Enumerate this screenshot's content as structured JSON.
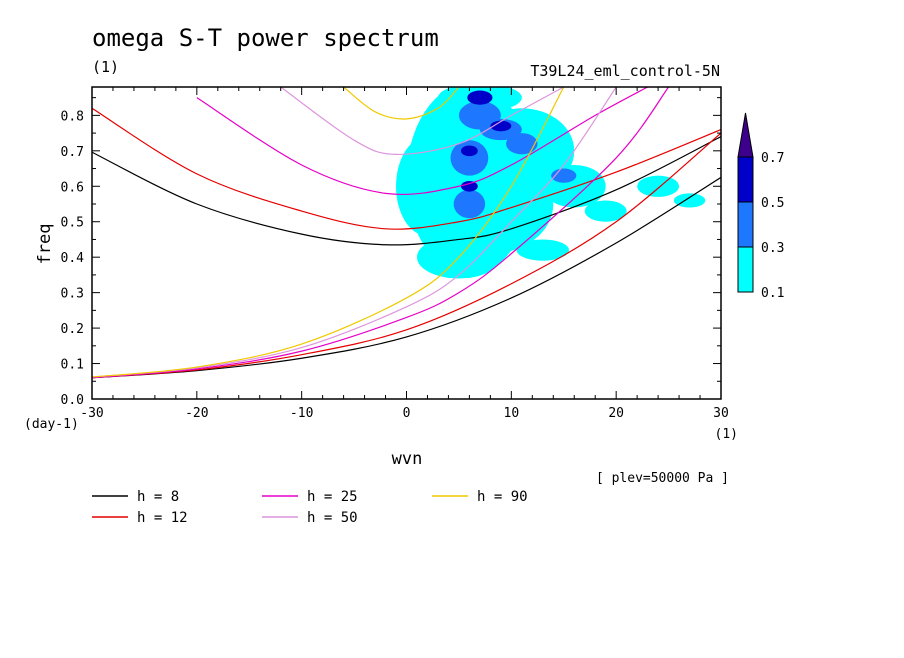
{
  "chart_data": {
    "type": "contour",
    "title": "omega S-T power spectrum",
    "units_label": "(1)",
    "run_label": "T39L24_eml_control-5N",
    "level_note": "[ plev=50000 Pa ]",
    "xlabel": "wvn",
    "ylabel": "freq",
    "x_unit_label": "(1)",
    "y_unit_label": "(day-1)",
    "xlim": [
      -30,
      30
    ],
    "ylim": [
      0,
      0.88
    ],
    "x_ticks": [
      -30,
      -20,
      -10,
      0,
      10,
      20,
      30
    ],
    "x_tick_labels": [
      "-30",
      "-20",
      "-10",
      "0",
      "10",
      "20",
      "30"
    ],
    "y_ticks": [
      0.0,
      0.1,
      0.2,
      0.3,
      0.4,
      0.5,
      0.6,
      0.7,
      0.8
    ],
    "y_tick_labels": [
      "0.0",
      "0.1",
      "0.2",
      "0.3",
      "0.4",
      "0.5",
      "0.6",
      "0.7",
      "0.8"
    ],
    "colorbar": {
      "levels": [
        "0.1",
        "0.3",
        "0.5",
        "0.7"
      ],
      "colors": [
        "#00ffff",
        "#1e78ff",
        "#0000c8",
        "#3c008c"
      ]
    },
    "power_blobs": [
      {
        "x": 6,
        "y": 0.62,
        "rx": 6,
        "ry": 0.27,
        "level": 0
      },
      {
        "x": 8,
        "y": 0.55,
        "rx": 6,
        "ry": 0.14,
        "level": 0
      },
      {
        "x": 11,
        "y": 0.7,
        "rx": 5,
        "ry": 0.12,
        "level": 0
      },
      {
        "x": 2,
        "y": 0.6,
        "rx": 3,
        "ry": 0.14,
        "level": 0
      },
      {
        "x": 5,
        "y": 0.4,
        "rx": 4,
        "ry": 0.06,
        "level": 0
      },
      {
        "x": 16,
        "y": 0.6,
        "rx": 3,
        "ry": 0.06,
        "level": 0
      },
      {
        "x": 13,
        "y": 0.42,
        "rx": 2.5,
        "ry": 0.03,
        "level": 0
      },
      {
        "x": 19,
        "y": 0.53,
        "rx": 2,
        "ry": 0.03,
        "level": 0
      },
      {
        "x": 24,
        "y": 0.6,
        "rx": 2,
        "ry": 0.03,
        "level": 0
      },
      {
        "x": 27,
        "y": 0.56,
        "rx": 1.5,
        "ry": 0.02,
        "level": 0
      },
      {
        "x": 7,
        "y": 0.85,
        "rx": 4,
        "ry": 0.04,
        "level": 0
      },
      {
        "x": 3,
        "y": 0.77,
        "rx": 1.5,
        "ry": 0.02,
        "level": 0
      },
      {
        "x": 7,
        "y": 0.8,
        "rx": 2,
        "ry": 0.04,
        "level": 1
      },
      {
        "x": 9,
        "y": 0.76,
        "rx": 2,
        "ry": 0.03,
        "level": 1
      },
      {
        "x": 6,
        "y": 0.68,
        "rx": 1.8,
        "ry": 0.05,
        "level": 1
      },
      {
        "x": 6,
        "y": 0.55,
        "rx": 1.5,
        "ry": 0.04,
        "level": 1
      },
      {
        "x": 11,
        "y": 0.72,
        "rx": 1.5,
        "ry": 0.03,
        "level": 1
      },
      {
        "x": 15,
        "y": 0.63,
        "rx": 1.2,
        "ry": 0.02,
        "level": 1
      },
      {
        "x": 7,
        "y": 0.85,
        "rx": 1.2,
        "ry": 0.02,
        "level": 2
      },
      {
        "x": 9,
        "y": 0.77,
        "rx": 1.0,
        "ry": 0.015,
        "level": 2
      },
      {
        "x": 6,
        "y": 0.7,
        "rx": 0.8,
        "ry": 0.015,
        "level": 2
      },
      {
        "x": 6,
        "y": 0.6,
        "rx": 0.8,
        "ry": 0.015,
        "level": 2
      }
    ],
    "legend": [
      {
        "label": "h =  8",
        "color": "#000000"
      },
      {
        "label": "h = 12",
        "color": "#e60000"
      },
      {
        "label": "h = 25",
        "color": "#e600c8"
      },
      {
        "label": "h = 50",
        "color": "#dc96dc"
      },
      {
        "label": "h = 90",
        "color": "#f0c800"
      }
    ],
    "dispersion_curves": [
      {
        "label": "h =  8",
        "color": "#000000",
        "upper": [
          [
            -30,
            0.696
          ],
          [
            -20,
            0.55
          ],
          [
            -10,
            0.465
          ],
          [
            -2,
            0.435
          ],
          [
            5,
            0.45
          ],
          [
            10,
            0.48
          ],
          [
            20,
            0.59
          ],
          [
            30,
            0.74
          ]
        ],
        "lower": [
          [
            -30,
            0.06
          ],
          [
            -20,
            0.08
          ],
          [
            -10,
            0.115
          ],
          [
            0,
            0.175
          ],
          [
            10,
            0.285
          ],
          [
            20,
            0.44
          ],
          [
            30,
            0.625
          ]
        ]
      },
      {
        "label": "h = 12",
        "color": "#e60000",
        "upper": [
          [
            -30,
            0.82
          ],
          [
            -20,
            0.635
          ],
          [
            -10,
            0.53
          ],
          [
            -2,
            0.48
          ],
          [
            5,
            0.5
          ],
          [
            10,
            0.54
          ],
          [
            20,
            0.64
          ],
          [
            30,
            0.76
          ]
        ],
        "lower": [
          [
            -30,
            0.06
          ],
          [
            -20,
            0.082
          ],
          [
            -10,
            0.125
          ],
          [
            0,
            0.195
          ],
          [
            10,
            0.325
          ],
          [
            20,
            0.5
          ],
          [
            30,
            0.75
          ]
        ]
      },
      {
        "label": "h = 25",
        "color": "#e600c8",
        "upper": [
          [
            -20,
            0.85
          ],
          [
            -10,
            0.66
          ],
          [
            -2,
            0.58
          ],
          [
            5,
            0.6
          ],
          [
            10,
            0.66
          ],
          [
            18,
            0.8
          ],
          [
            23,
            0.88
          ]
        ],
        "lower": [
          [
            -30,
            0.06
          ],
          [
            -20,
            0.085
          ],
          [
            -10,
            0.135
          ],
          [
            0,
            0.23
          ],
          [
            5,
            0.3
          ],
          [
            10,
            0.41
          ],
          [
            20,
            0.68
          ],
          [
            25,
            0.88
          ]
        ]
      },
      {
        "label": "h = 50",
        "color": "#dc96dc",
        "upper": [
          [
            -12,
            0.88
          ],
          [
            -5,
            0.73
          ],
          [
            -1,
            0.69
          ],
          [
            5,
            0.72
          ],
          [
            10,
            0.8
          ],
          [
            15,
            0.88
          ]
        ],
        "lower": [
          [
            -30,
            0.062
          ],
          [
            -20,
            0.088
          ],
          [
            -10,
            0.145
          ],
          [
            0,
            0.26
          ],
          [
            5,
            0.35
          ],
          [
            10,
            0.5
          ],
          [
            15,
            0.66
          ],
          [
            20,
            0.88
          ]
        ]
      },
      {
        "label": "h = 90",
        "color": "#f0c800",
        "upper": [
          [
            -6,
            0.88
          ],
          [
            -3,
            0.81
          ],
          [
            0,
            0.79
          ],
          [
            3,
            0.82
          ],
          [
            5,
            0.88
          ]
        ],
        "lower": [
          [
            -30,
            0.062
          ],
          [
            -20,
            0.09
          ],
          [
            -10,
            0.155
          ],
          [
            0,
            0.285
          ],
          [
            5,
            0.4
          ],
          [
            10,
            0.6
          ],
          [
            15,
            0.88
          ]
        ]
      }
    ]
  }
}
